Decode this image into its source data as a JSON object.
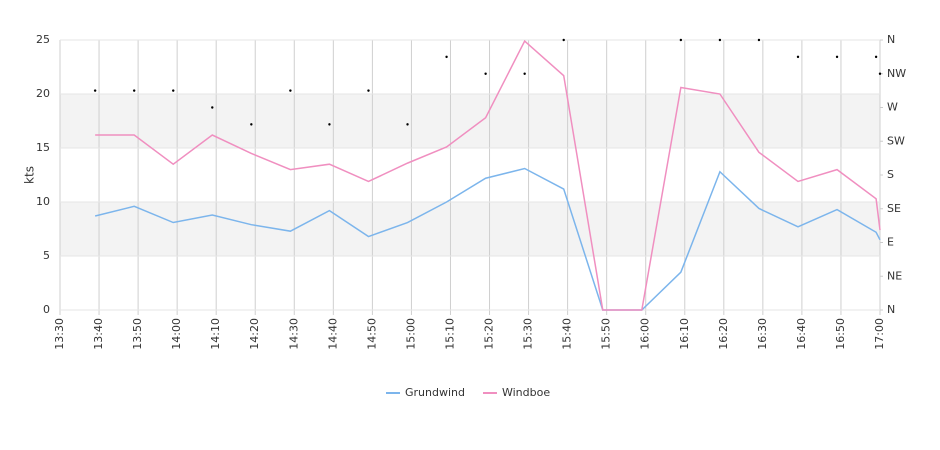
{
  "chart_data": {
    "type": "line",
    "ylabel": "kts",
    "x": [
      "13:39",
      "13:49",
      "13:59",
      "14:09",
      "14:19",
      "14:29",
      "14:39",
      "14:49",
      "14:59",
      "15:09",
      "15:19",
      "15:29",
      "15:39",
      "15:49",
      "15:59",
      "16:09",
      "16:19",
      "16:29",
      "16:39",
      "16:49",
      "16:59",
      "17:00"
    ],
    "series": [
      {
        "name": "Grundwind",
        "color": "#7cb5ec",
        "values": [
          8.7,
          9.6,
          8.1,
          8.8,
          7.9,
          7.3,
          9.2,
          6.8,
          8.1,
          10.0,
          12.2,
          13.1,
          11.2,
          0,
          0,
          3.5,
          12.8,
          9.4,
          7.7,
          9.3,
          7.2,
          6.5
        ]
      },
      {
        "name": "Windboe",
        "color": "#f08fc0",
        "values": [
          16.2,
          16.2,
          13.5,
          16.2,
          14.5,
          13.0,
          13.5,
          11.9,
          13.6,
          15.1,
          17.8,
          24.9,
          21.7,
          0,
          0,
          20.6,
          20.0,
          14.6,
          11.9,
          13.0,
          10.3,
          7.4
        ]
      },
      {
        "axis": "y2",
        "color": "#000000",
        "values": [
          292.5,
          292.5,
          292.5,
          270,
          247.5,
          292.5,
          247.5,
          292.5,
          247.5,
          337.5,
          315,
          315,
          360,
          null,
          null,
          360,
          360,
          360,
          337.5,
          337.5,
          337.5,
          315
        ]
      }
    ],
    "xlim": [
      "13:30",
      "17:00"
    ],
    "xticks": [
      "13:30",
      "13:40",
      "13:50",
      "14:00",
      "14:10",
      "14:20",
      "14:30",
      "14:40",
      "14:50",
      "15:00",
      "15:10",
      "15:20",
      "15:30",
      "15:40",
      "15:50",
      "16:00",
      "16:10",
      "16:20",
      "16:30",
      "16:40",
      "16:50",
      "17:00"
    ],
    "ylim": [
      0,
      25
    ],
    "yticks": [
      0,
      5,
      10,
      15,
      20,
      25
    ],
    "y2lim": [
      0,
      360
    ],
    "y2ticks": [
      {
        "value": 0,
        "label": "N"
      },
      {
        "value": 45,
        "label": "NE"
      },
      {
        "value": 90,
        "label": "E"
      },
      {
        "value": 135,
        "label": "SE"
      },
      {
        "value": 180,
        "label": "S"
      },
      {
        "value": 225,
        "label": "SW"
      },
      {
        "value": 270,
        "label": "W"
      },
      {
        "value": 315,
        "label": "NW"
      },
      {
        "value": 360,
        "label": "N"
      }
    ],
    "grid": "bands",
    "legend": "bottom"
  }
}
